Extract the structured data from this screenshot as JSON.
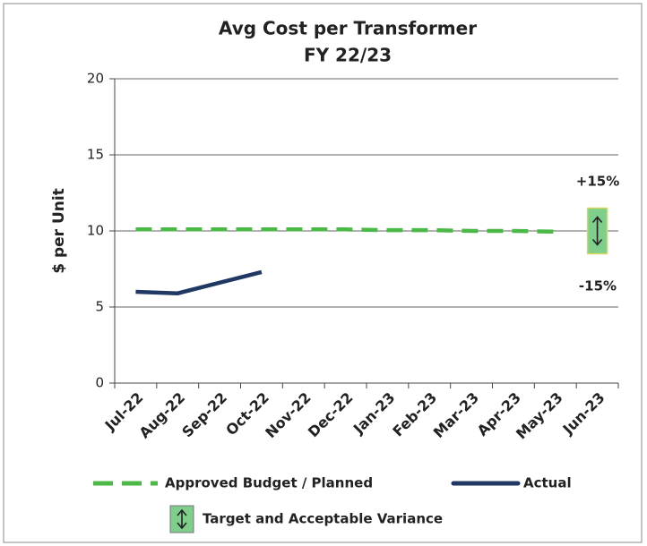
{
  "chart_data": {
    "type": "line",
    "title": "Avg Cost per Transformer",
    "subtitle": "FY 22/23",
    "y_label": "$ per Unit",
    "categories": [
      "Jul-22",
      "Aug-22",
      "Sep-22",
      "Oct-22",
      "Nov-22",
      "Dec-22",
      "Jan-23",
      "Feb-23",
      "Mar-23",
      "Apr-23",
      "May-23",
      "Jun-23"
    ],
    "series": [
      {
        "name": "Approved Budget / Planned",
        "color": "#4cb848",
        "dashed": true,
        "values": [
          10.1,
          10.1,
          10.1,
          10.1,
          10.1,
          10.1,
          10.05,
          10.05,
          10.0,
          10.0,
          9.95,
          null
        ]
      },
      {
        "name": "Actual",
        "color": "#1f3864",
        "values": [
          6.0,
          5.9,
          6.6,
          7.3,
          null,
          null,
          null,
          null,
          null,
          null,
          null,
          null
        ]
      }
    ],
    "target_band": {
      "name": "Target and Acceptable Variance",
      "low": 8.5,
      "high": 11.5,
      "color": "#7fce8c"
    },
    "annotations": [
      "+15%",
      "-15%"
    ],
    "ylim": [
      0,
      20
    ],
    "yticks": [
      0,
      5,
      10,
      15,
      20
    ],
    "grid": true
  }
}
